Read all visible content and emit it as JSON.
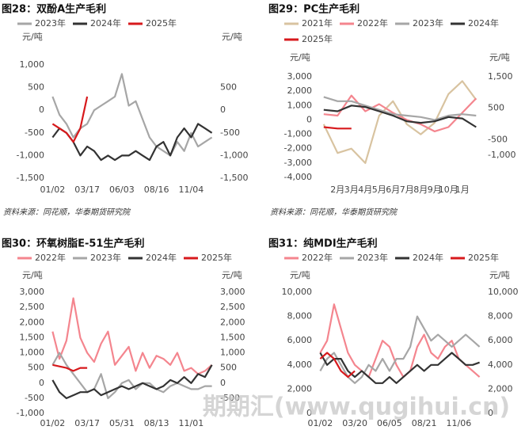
{
  "chart_data": [
    {
      "type": "line",
      "title": "图28：双酚A生产毛利",
      "y_label": "元/吨",
      "y2_label": "元/吨",
      "categories": [
        "01/02",
        null,
        null,
        null,
        null,
        "03/17",
        null,
        null,
        null,
        null,
        "06/03",
        null,
        null,
        null,
        null,
        "08/16",
        null,
        null,
        null,
        null,
        "11/04",
        null,
        null,
        null
      ],
      "series": [
        {
          "name": "2023年",
          "color": "#a6a6a6",
          "values": [
            300,
            -100,
            -300,
            -600,
            -400,
            -300,
            0,
            100,
            200,
            300,
            800,
            100,
            200,
            -200,
            -600,
            -800,
            -900,
            -1000,
            -700,
            -900,
            -500,
            -800,
            -700,
            -600
          ]
        },
        {
          "name": "2024年",
          "color": "#333333",
          "values": [
            -600,
            -400,
            -500,
            -700,
            -1000,
            -800,
            -900,
            -1100,
            -1000,
            -1100,
            -1000,
            -1000,
            -900,
            -1000,
            -1100,
            -800,
            -700,
            -1000,
            -600,
            -400,
            -600,
            -300,
            -400,
            -500
          ]
        },
        {
          "name": "2025年",
          "color": "#d7191c",
          "values": [
            -300,
            -400,
            -500,
            -700,
            -400,
            300,
            null,
            null,
            null,
            null,
            null,
            null,
            null,
            null,
            null,
            null,
            null,
            null,
            null,
            null,
            null,
            null,
            null,
            null
          ]
        }
      ],
      "ylim": [
        -1500,
        1000
      ],
      "yticks": [
        {
          "value": 1000,
          "label": "1,000"
        },
        500,
        0,
        -500,
        {
          "value": -1000,
          "label": "-1,000"
        },
        {
          "value": -1500,
          "label": "-1,500"
        }
      ],
      "y2lim": [
        -1500,
        1000
      ],
      "y2ticks": [
        500,
        0,
        -500,
        {
          "value": -1000,
          "label": "-1,000"
        },
        {
          "value": -1500,
          "label": "-1,500"
        }
      ],
      "source": "资料来源：同花顺，华泰期货研究院"
    },
    {
      "type": "line",
      "title": "图29：PC生产毛利",
      "y_label": "元/吨",
      "y2_label": "元/吨",
      "categories": [
        null,
        "2月",
        "3月",
        "4月",
        "5月",
        "6月",
        "7月",
        "8月",
        "9月",
        "10月",
        "1月",
        null
      ],
      "series": [
        {
          "name": "2021年",
          "color": "#d8c3a0",
          "values": [
            -300,
            -2300,
            -2000,
            -3000,
            300,
            1300,
            -300,
            -1000,
            -200,
            1800,
            2700,
            1400
          ]
        },
        {
          "name": "2022年",
          "color": "#f4858e",
          "values": [
            400,
            300,
            1700,
            600,
            1100,
            500,
            0,
            -300,
            -800,
            -500,
            500,
            1500
          ]
        },
        {
          "name": "2023年",
          "color": "#a6a6a6",
          "values": [
            1600,
            1300,
            1300,
            1000,
            700,
            400,
            300,
            200,
            0,
            300,
            400,
            300
          ]
        },
        {
          "name": "2024年",
          "color": "#333333",
          "values": [
            700,
            600,
            1000,
            900,
            600,
            300,
            -100,
            -200,
            -100,
            200,
            100,
            -500
          ]
        },
        {
          "name": "2025年",
          "color": "#d7191c",
          "values": [
            -500,
            -600,
            -600,
            null,
            null,
            null,
            null,
            null,
            null,
            null,
            null,
            null
          ]
        }
      ],
      "ylim": [
        -4000,
        3000
      ],
      "yticks": [
        {
          "value": 3000,
          "label": "3,000"
        },
        {
          "value": 2000,
          "label": "2,000"
        },
        {
          "value": 1000,
          "label": "1,000"
        },
        0,
        {
          "value": -1000,
          "label": "-1,000"
        },
        {
          "value": -2000,
          "label": "-2,000"
        },
        {
          "value": -3000,
          "label": "-3,000"
        },
        {
          "value": -4000,
          "label": "-4,000"
        }
      ],
      "y2lim": [
        -1700,
        1500
      ],
      "y2ticks": [
        {
          "value": 1500,
          "label": "1,500"
        },
        500,
        -500,
        {
          "value": -1000,
          "label": "-1,000"
        }
      ],
      "source": "资料来源：同花顺，华泰期货研究院"
    },
    {
      "type": "line",
      "title": "图30：环氧树脂E-51生产毛利",
      "y_label": "元/吨",
      "y2_label": "元/吨",
      "categories": [
        "01/02",
        null,
        null,
        null,
        null,
        "03/17",
        null,
        null,
        null,
        null,
        "05/31",
        null,
        null,
        null,
        null,
        "08/13",
        null,
        null,
        null,
        null,
        "11/01",
        null,
        null,
        null
      ],
      "series": [
        {
          "name": "2022年",
          "color": "#f4858e",
          "values": [
            1700,
            800,
            1400,
            2800,
            1500,
            1000,
            700,
            1300,
            1700,
            600,
            900,
            1200,
            400,
            1000,
            500,
            900,
            800,
            600,
            1000,
            400,
            500,
            300,
            400,
            600
          ]
        },
        {
          "name": "2023年",
          "color": "#a6a6a6",
          "values": [
            600,
            1000,
            600,
            300,
            0,
            -300,
            -200,
            300,
            -500,
            -300,
            0,
            100,
            -200,
            0,
            0,
            -200,
            -300,
            -100,
            0,
            -100,
            -200,
            -200,
            -100,
            -100
          ]
        },
        {
          "name": "2024年",
          "color": "#333333",
          "values": [
            100,
            -300,
            -500,
            -400,
            -300,
            -300,
            -200,
            -400,
            -300,
            -200,
            -100,
            -200,
            -100,
            0,
            -100,
            -200,
            -100,
            100,
            0,
            200,
            0,
            300,
            200,
            600
          ]
        },
        {
          "name": "2025年",
          "color": "#d7191c",
          "values": [
            600,
            550,
            500,
            400,
            500,
            500,
            null,
            null,
            null,
            null,
            null,
            null,
            null,
            null,
            null,
            null,
            null,
            null,
            null,
            null,
            null,
            null,
            null,
            null
          ]
        }
      ],
      "ylim": [
        -1000,
        3000
      ],
      "yticks": [
        {
          "value": 3000,
          "label": "3,000"
        },
        {
          "value": 2500,
          "label": "2,500"
        },
        {
          "value": 2000,
          "label": "2,000"
        },
        {
          "value": 1500,
          "label": "1,500"
        },
        {
          "value": 1000,
          "label": "1,000"
        },
        500,
        0,
        -500,
        {
          "value": -1000,
          "label": "-1,000"
        }
      ],
      "y2lim": [
        -1000,
        3000
      ],
      "y2ticks": [
        {
          "value": 3000,
          "label": "3,000"
        },
        {
          "value": 2500,
          "label": "2,500"
        },
        {
          "value": 2000,
          "label": "2,000"
        },
        {
          "value": 1500,
          "label": "1,500"
        },
        {
          "value": 1000,
          "label": "1,000"
        },
        500,
        0,
        -500
      ]
    },
    {
      "type": "line",
      "title": "图31：纯MDI生产毛利",
      "y_label": "元/吨",
      "y2_label": "元/吨",
      "categories": [
        "01/02",
        null,
        null,
        null,
        null,
        "03/20",
        null,
        null,
        null,
        null,
        "06/05",
        null,
        null,
        null,
        null,
        "08/21",
        null,
        null,
        null,
        null,
        "11/06",
        null,
        null,
        null
      ],
      "series": [
        {
          "name": "2022年",
          "color": "#f4858e",
          "values": [
            5000,
            6000,
            9000,
            7000,
            5000,
            4000,
            3500,
            3000,
            4500,
            6000,
            5500,
            4000,
            3000,
            3500,
            5500,
            6500,
            5000,
            4500,
            5500,
            6000,
            4500,
            4000,
            3500,
            3000
          ]
        },
        {
          "name": "2023年",
          "color": "#a6a6a6",
          "values": [
            3500,
            4500,
            5000,
            4000,
            3000,
            2500,
            3000,
            4000,
            3500,
            4500,
            3500,
            4500,
            4500,
            5500,
            8000,
            7000,
            6000,
            6500,
            6000,
            5500,
            6000,
            6500,
            6000,
            5500
          ]
        },
        {
          "name": "2024年",
          "color": "#333333",
          "values": [
            5000,
            4000,
            4500,
            4500,
            3500,
            3000,
            3500,
            3000,
            2500,
            2500,
            3000,
            2500,
            3000,
            3500,
            4000,
            3500,
            4000,
            4000,
            4500,
            5000,
            4500,
            4000,
            4000,
            4200
          ]
        },
        {
          "name": "2025年",
          "color": "#d7191c",
          "values": [
            4500,
            5000,
            4500,
            3500,
            3000,
            3500,
            null,
            null,
            null,
            null,
            null,
            null,
            null,
            null,
            null,
            null,
            null,
            null,
            null,
            null,
            null,
            null,
            null,
            null
          ]
        }
      ],
      "ylim": [
        0,
        10000
      ],
      "yticks": [
        {
          "value": 10000,
          "label": "10,000"
        },
        {
          "value": 8000,
          "label": "8,000"
        },
        {
          "value": 6000,
          "label": "6,000"
        },
        {
          "value": 4000,
          "label": "4,000"
        },
        {
          "value": 2000,
          "label": "2,000"
        },
        0
      ],
      "y2lim": [
        0,
        10000
      ],
      "y2ticks": [
        {
          "value": 10000,
          "label": "10,000"
        },
        {
          "value": 8000,
          "label": "8,000"
        },
        {
          "value": 6000,
          "label": "6,000"
        },
        {
          "value": 4000,
          "label": "4,000"
        },
        {
          "value": 2000,
          "label": "2,000"
        },
        0
      ]
    }
  ],
  "watermark": "期期汇(www.qugihui.cn)"
}
